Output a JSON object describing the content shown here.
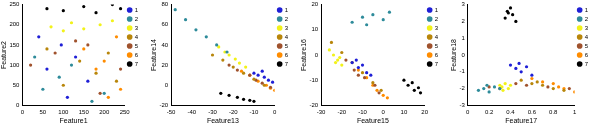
{
  "chart_data": [
    {
      "type": "scatter",
      "x_label": "Feature1",
      "y_label": "Feature2",
      "xlim": [
        0,
        250
      ],
      "xticks": [
        0,
        50,
        100,
        150,
        200,
        250
      ],
      "ylim": [
        0,
        250
      ],
      "yticks": [
        0,
        50,
        100,
        150,
        200,
        250
      ],
      "grid": false,
      "legend": "upper right",
      "marker": "circle",
      "series": [
        {
          "name": "1",
          "color": "#1f1fd6",
          "x": [
            95,
            130,
            60,
            160,
            110,
            40
          ],
          "values": [
            150,
            120,
            90,
            60,
            20,
            170
          ]
        },
        {
          "name": "2",
          "color": "#2e8b9a",
          "x": [
            50,
            120,
            200,
            30,
            170,
            90
          ],
          "values": [
            40,
            100,
            30,
            120,
            10,
            70
          ]
        },
        {
          "name": "3",
          "color": "#f2f21a",
          "x": [
            70,
            120,
            150,
            190,
            220,
            100
          ],
          "values": [
            195,
            205,
            190,
            200,
            210,
            185
          ]
        },
        {
          "name": "4",
          "color": "#b8860b",
          "x": [
            180,
            210,
            140,
            230,
            60,
            100
          ],
          "values": [
            80,
            130,
            110,
            60,
            140,
            50
          ]
        },
        {
          "name": "5",
          "color": "#a0522d",
          "x": [
            20,
            160,
            240,
            80,
            190,
            130
          ],
          "values": [
            100,
            150,
            90,
            130,
            30,
            160
          ]
        },
        {
          "name": "6",
          "color": "#ff8c00",
          "x": [
            230,
            200,
            150,
            240,
            180,
            210
          ],
          "values": [
            170,
            110,
            140,
            40,
            90,
            20
          ]
        },
        {
          "name": "7",
          "color": "#000000",
          "x": [
            60,
            100,
            150,
            180,
            220,
            240
          ],
          "values": [
            240,
            235,
            245,
            230,
            250,
            240
          ]
        }
      ]
    },
    {
      "type": "scatter",
      "x_label": "Feature13",
      "y_label": "Feature14",
      "xlim": [
        -50,
        0
      ],
      "xticks": [
        -50,
        -40,
        -30,
        -20,
        -10,
        0
      ],
      "ylim": [
        -20,
        80
      ],
      "yticks": [
        -20,
        0,
        20,
        40,
        60,
        80
      ],
      "grid": false,
      "legend": "upper right",
      "marker": "circle",
      "series": [
        {
          "name": "1",
          "color": "#1f1fd6",
          "x": [
            -10,
            -8,
            -5,
            -3,
            -1,
            -6
          ],
          "values": [
            12,
            10,
            8,
            5,
            3,
            14
          ]
        },
        {
          "name": "2",
          "color": "#2e8b9a",
          "x": [
            -48,
            -43,
            -38,
            -33,
            -28,
            -23
          ],
          "values": [
            75,
            65,
            55,
            48,
            40,
            33
          ]
        },
        {
          "name": "3",
          "color": "#f2f21a",
          "x": [
            -27,
            -24,
            -22,
            -19,
            -17,
            -14
          ],
          "values": [
            38,
            33,
            30,
            26,
            22,
            18
          ]
        },
        {
          "name": "4",
          "color": "#b8860b",
          "x": [
            -30,
            -25,
            -20,
            -15,
            -10,
            -5
          ],
          "values": [
            30,
            25,
            18,
            12,
            6,
            0
          ]
        },
        {
          "name": "5",
          "color": "#a0522d",
          "x": [
            -22,
            -18,
            -12,
            -9,
            -6,
            -2
          ],
          "values": [
            20,
            15,
            10,
            5,
            2,
            -2
          ]
        },
        {
          "name": "6",
          "color": "#ff8c00",
          "x": [
            -16,
            -12,
            -8,
            -4,
            -2,
            0
          ],
          "values": [
            14,
            10,
            4,
            0,
            -3,
            -5
          ]
        },
        {
          "name": "7",
          "color": "#000000",
          "x": [
            -26,
            -22,
            -18,
            -15,
            -12,
            -10
          ],
          "values": [
            -8,
            -10,
            -12,
            -14,
            -15,
            -16
          ]
        }
      ]
    },
    {
      "type": "scatter",
      "x_label": "Feature15",
      "y_label": "Feature16",
      "xlim": [
        -30,
        20
      ],
      "xticks": [
        -30,
        -20,
        -10,
        0,
        10,
        20
      ],
      "ylim": [
        -20,
        20
      ],
      "yticks": [
        -20,
        -10,
        0,
        10,
        20
      ],
      "grid": false,
      "legend": "upper right",
      "marker": "circle",
      "series": [
        {
          "name": "1",
          "color": "#1f1fd6",
          "x": [
            -15,
            -12,
            -10,
            -8,
            -6,
            -13
          ],
          "values": [
            -3,
            -5,
            -4,
            -7,
            -8,
            -2
          ]
        },
        {
          "name": "2",
          "color": "#2e8b9a",
          "x": [
            -15,
            -10,
            -5,
            0,
            3,
            -8
          ],
          "values": [
            13,
            15,
            16,
            14,
            17,
            12
          ]
        },
        {
          "name": "3",
          "color": "#f2f21a",
          "x": [
            -26,
            -24,
            -22,
            -21,
            -20,
            -23
          ],
          "values": [
            2,
            0,
            -2,
            -1,
            -4,
            -3
          ]
        },
        {
          "name": "4",
          "color": "#b8860b",
          "x": [
            -25,
            -20,
            -15,
            -10,
            -5,
            -1
          ],
          "values": [
            5,
            1,
            -3,
            -7,
            -11,
            -14
          ]
        },
        {
          "name": "5",
          "color": "#a0522d",
          "x": [
            -18,
            -14,
            -9,
            -4,
            -2,
            -12
          ],
          "values": [
            -2,
            -6,
            -9,
            -12,
            -15,
            -8
          ]
        },
        {
          "name": "6",
          "color": "#ff8c00",
          "x": [
            -12,
            -8,
            -5,
            -3,
            0,
            2
          ],
          "values": [
            -6,
            -9,
            -12,
            -14,
            -16,
            -17
          ]
        },
        {
          "name": "7",
          "color": "#000000",
          "x": [
            10,
            12,
            14,
            15,
            17,
            18
          ],
          "values": [
            -10,
            -12,
            -11,
            -14,
            -13,
            -15
          ]
        }
      ]
    },
    {
      "type": "scatter",
      "x_label": "Feature17",
      "y_label": "Feature18",
      "xlim": [
        0,
        1
      ],
      "xticks": [
        0,
        0.2,
        0.4,
        0.6,
        0.8,
        1
      ],
      "ylim": [
        -3,
        3
      ],
      "yticks": [
        -3,
        -2,
        -1,
        0,
        1,
        2,
        3
      ],
      "grid": false,
      "legend": "upper right",
      "marker": "circle",
      "series": [
        {
          "name": "1",
          "color": "#1f1fd6",
          "x": [
            0.4,
            0.45,
            0.5,
            0.55,
            0.6,
            0.48
          ],
          "values": [
            -0.6,
            -0.8,
            -1,
            -0.7,
            -1.2,
            -0.5
          ]
        },
        {
          "name": "2",
          "color": "#2e8b9a",
          "x": [
            0.1,
            0.15,
            0.2,
            0.25,
            0.3,
            0.18
          ],
          "values": [
            -2.1,
            -2,
            -2.2,
            -1.9,
            -2,
            -1.8
          ]
        },
        {
          "name": "3",
          "color": "#f2f21a",
          "x": [
            0.3,
            0.32,
            0.35,
            0.38,
            0.4,
            0.33
          ],
          "values": [
            -1.8,
            -1.9,
            -1.7,
            -2,
            -1.8,
            -2.1
          ]
        },
        {
          "name": "4",
          "color": "#b8860b",
          "x": [
            0.5,
            0.6,
            0.7,
            0.8,
            0.9,
            0.65
          ],
          "values": [
            -1.5,
            -1.7,
            -1.8,
            -2,
            -2.1,
            -1.6
          ]
        },
        {
          "name": "5",
          "color": "#a0522d",
          "x": [
            0.2,
            0.3,
            0.45,
            0.55,
            0.75,
            0.95
          ],
          "values": [
            -1.9,
            -2,
            -1.7,
            -1.8,
            -1.9,
            -2
          ]
        },
        {
          "name": "6",
          "color": "#ff8c00",
          "x": [
            0.6,
            0.7,
            0.8,
            0.85,
            0.9,
            1
          ],
          "values": [
            -1.4,
            -1.6,
            -1.7,
            -1.9,
            -2,
            -2.2
          ]
        },
        {
          "name": "7",
          "color": "#000000",
          "x": [
            0.35,
            0.38,
            0.4,
            0.42,
            0.45,
            0.37
          ],
          "values": [
            2.2,
            2.5,
            2.8,
            2.4,
            2,
            2.6
          ]
        }
      ]
    }
  ]
}
